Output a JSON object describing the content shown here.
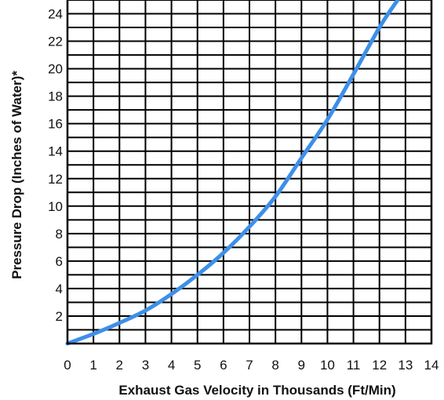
{
  "chart_data": {
    "type": "line",
    "title": "",
    "xlabel": "Exhaust Gas Velocity in Thousands (Ft/Min)",
    "ylabel": "Pressure Drop (Inches of Water)*",
    "xlim": [
      0,
      14
    ],
    "ylim": [
      0,
      25
    ],
    "x_ticks": [
      "0",
      "1",
      "2",
      "3",
      "4",
      "5",
      "6",
      "7",
      "8",
      "9",
      "10",
      "11",
      "12",
      "13",
      "14"
    ],
    "y_ticks": [
      "2",
      "4",
      "6",
      "8",
      "10",
      "12",
      "14",
      "16",
      "18",
      "20",
      "22",
      "24"
    ],
    "grid": true,
    "series": [
      {
        "color": "#3d8fe8",
        "x": [
          0,
          1,
          2,
          3,
          4,
          5,
          6,
          7,
          8,
          9,
          10,
          11,
          12,
          12.7
        ],
        "y": [
          0,
          0.7,
          1.5,
          2.4,
          3.6,
          5.0,
          6.6,
          8.5,
          10.7,
          13.5,
          16.3,
          19.6,
          23.0,
          25.0
        ]
      }
    ]
  }
}
